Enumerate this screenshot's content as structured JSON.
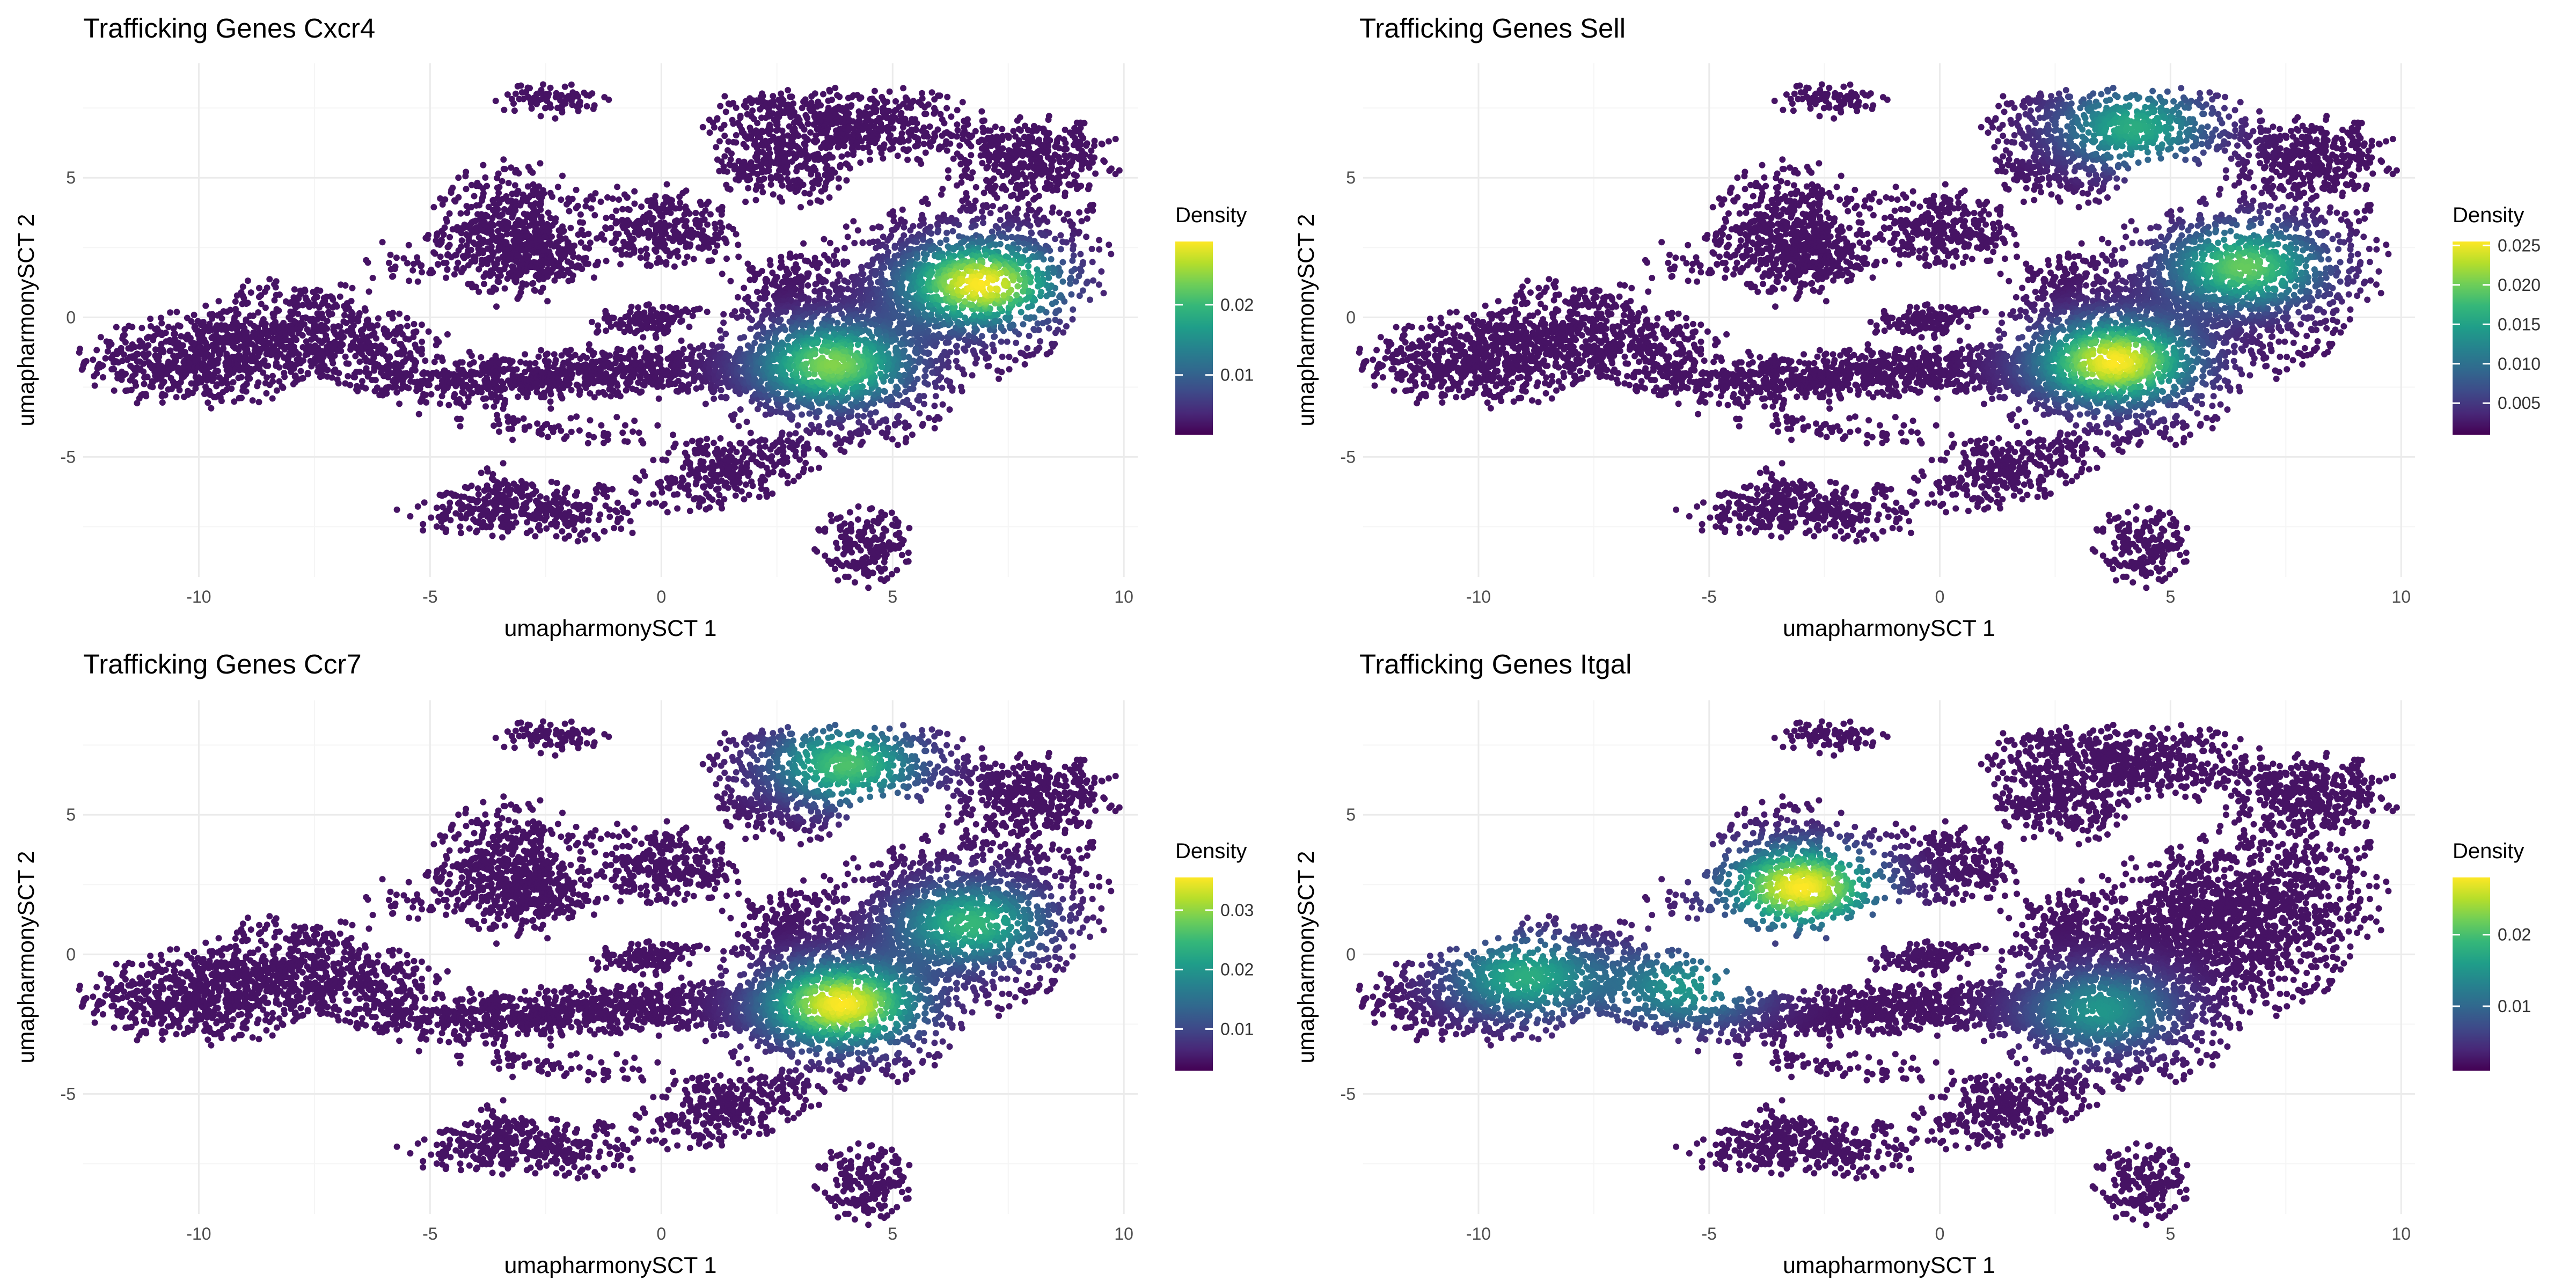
{
  "colors": {
    "viridis": [
      "#440154",
      "#482878",
      "#3e4a89",
      "#31688e",
      "#26828e",
      "#1f9e89",
      "#35b779",
      "#6ece58",
      "#b5de2b",
      "#fde725"
    ],
    "grid_major": "#ebebeb",
    "grid_minor": "#f5f5f5",
    "background": "#ffffff"
  },
  "chart_data": [
    {
      "type": "scatter",
      "title": "Trafficking Genes Cxcr4",
      "xlabel": "umapharmonySCT 1",
      "ylabel": "umapharmonySCT 2",
      "xlim": [
        -12.5,
        10.3
      ],
      "ylim": [
        -9.3,
        9.1
      ],
      "x_ticks": [
        -10,
        -5,
        0,
        5,
        10
      ],
      "y_ticks": [
        -5,
        0,
        5
      ],
      "grid": true,
      "legend": {
        "title": "Density",
        "position": "right",
        "range": [
          0.0015,
          0.029
        ],
        "ticks": [
          0.01,
          0.02
        ],
        "tick_labels": [
          "0.01",
          "0.02"
        ]
      },
      "density_peaks": [
        {
          "x": 6.9,
          "y": 1.2,
          "level": 1.0
        },
        {
          "x": 3.7,
          "y": -1.7,
          "level": 0.8
        }
      ]
    },
    {
      "type": "scatter",
      "title": "Trafficking Genes Sell",
      "xlabel": "umapharmonySCT 1",
      "ylabel": "umapharmonySCT 2",
      "xlim": [
        -12.5,
        10.3
      ],
      "ylim": [
        -9.3,
        9.1
      ],
      "x_ticks": [
        -10,
        -5,
        0,
        5,
        10
      ],
      "y_ticks": [
        -5,
        0,
        5
      ],
      "grid": true,
      "legend": {
        "title": "Density",
        "position": "right",
        "range": [
          0.001,
          0.0255
        ],
        "ticks": [
          0.005,
          0.01,
          0.015,
          0.02,
          0.025
        ],
        "tick_labels": [
          "0.005",
          "0.010",
          "0.015",
          "0.020",
          "0.025"
        ]
      },
      "density_peaks": [
        {
          "x": 3.8,
          "y": -1.6,
          "level": 1.0
        },
        {
          "x": 6.6,
          "y": 1.8,
          "level": 0.75
        },
        {
          "x": 4.2,
          "y": 6.8,
          "level": 0.6
        }
      ]
    },
    {
      "type": "scatter",
      "title": "Trafficking Genes Ccr7",
      "xlabel": "umapharmonySCT 1",
      "ylabel": "umapharmonySCT 2",
      "xlim": [
        -12.5,
        10.3
      ],
      "ylim": [
        -9.3,
        9.1
      ],
      "x_ticks": [
        -10,
        -5,
        0,
        5,
        10
      ],
      "y_ticks": [
        -5,
        0,
        5
      ],
      "grid": true,
      "legend": {
        "title": "Density",
        "position": "right",
        "range": [
          0.003,
          0.0355
        ],
        "ticks": [
          0.01,
          0.02,
          0.03
        ],
        "tick_labels": [
          "0.01",
          "0.02",
          "0.03"
        ]
      },
      "density_peaks": [
        {
          "x": 3.9,
          "y": -1.8,
          "level": 1.0
        },
        {
          "x": 6.7,
          "y": 1.1,
          "level": 0.65
        },
        {
          "x": 4.0,
          "y": 6.8,
          "level": 0.7
        }
      ]
    },
    {
      "type": "scatter",
      "title": "Trafficking Genes Itgal",
      "xlabel": "umapharmonySCT 1",
      "ylabel": "umapharmonySCT 2",
      "xlim": [
        -12.5,
        10.3
      ],
      "ylim": [
        -9.3,
        9.1
      ],
      "x_ticks": [
        -10,
        -5,
        0,
        5,
        10
      ],
      "y_ticks": [
        -5,
        0,
        5
      ],
      "grid": true,
      "legend": {
        "title": "Density",
        "position": "right",
        "range": [
          0.001,
          0.028
        ],
        "ticks": [
          0.01,
          0.02
        ],
        "tick_labels": [
          "0.01",
          "0.02"
        ]
      },
      "density_peaks": [
        {
          "x": -3.0,
          "y": 2.4,
          "level": 1.0
        },
        {
          "x": -9.0,
          "y": -0.8,
          "level": 0.6
        },
        {
          "x": 3.5,
          "y": -2.0,
          "level": 0.5
        },
        {
          "x": -5.5,
          "y": -1.2,
          "level": 0.5
        }
      ]
    }
  ]
}
